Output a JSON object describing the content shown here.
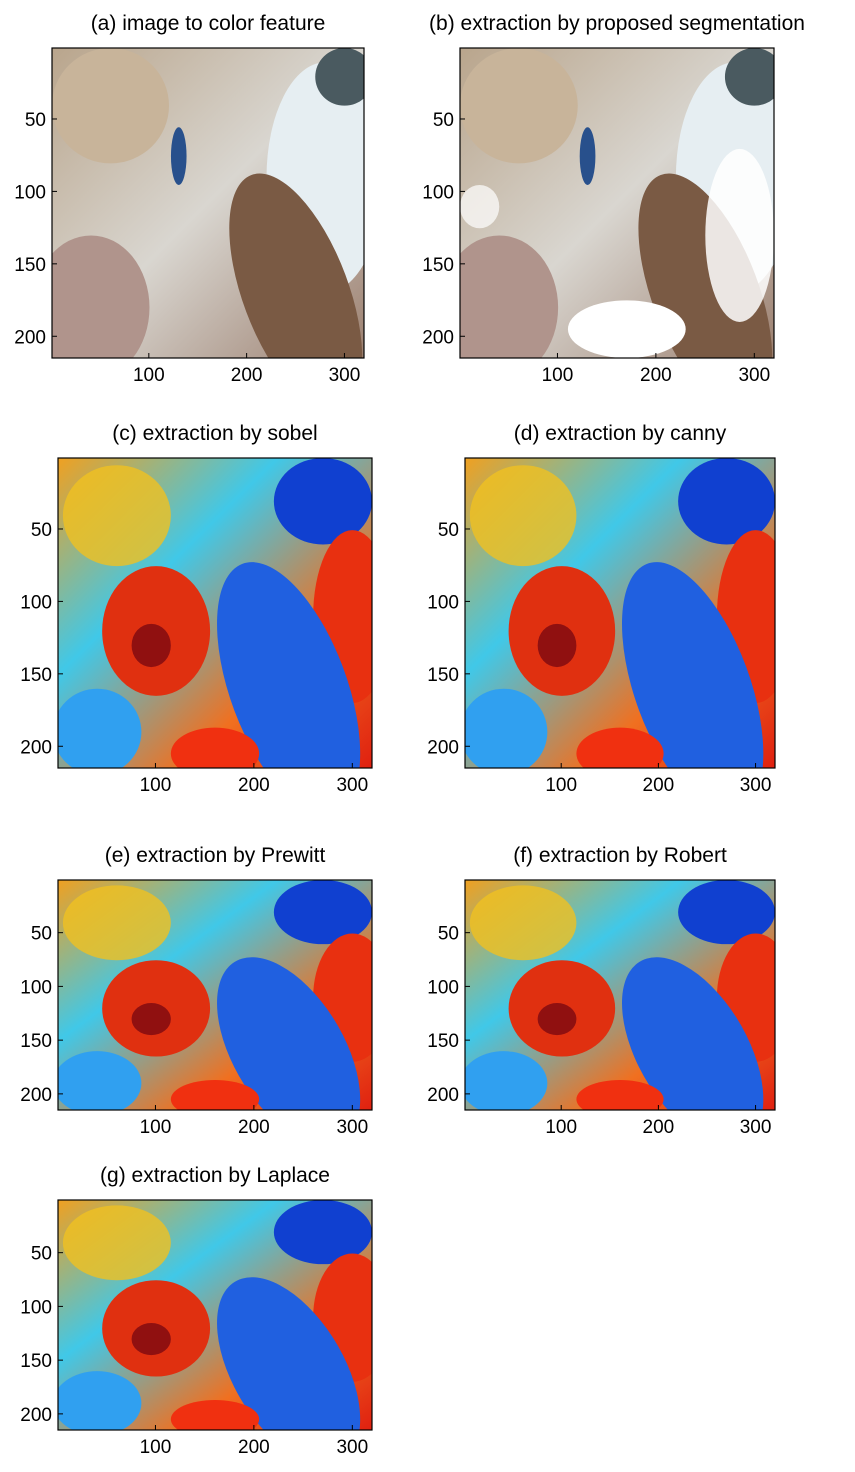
{
  "chart_data": [
    {
      "type": "image",
      "colormap": "rgb",
      "title": "(a) image to color feature",
      "xlim": [
        1,
        320
      ],
      "ylim": [
        1,
        215
      ],
      "y_reversed": true,
      "xticks": [
        100,
        200,
        300
      ],
      "yticks": [
        50,
        100,
        150,
        200
      ]
    },
    {
      "type": "image",
      "colormap": "rgb-segmented",
      "title": "(b) extraction by proposed segmentation",
      "xlim": [
        1,
        320
      ],
      "ylim": [
        1,
        215
      ],
      "y_reversed": true,
      "xticks": [
        100,
        200,
        300
      ],
      "yticks": [
        50,
        100,
        150,
        200
      ]
    },
    {
      "type": "image",
      "colormap": "jet",
      "title": "(c) extraction by sobel",
      "xlim": [
        1,
        320
      ],
      "ylim": [
        1,
        215
      ],
      "y_reversed": true,
      "xticks": [
        100,
        200,
        300
      ],
      "yticks": [
        50,
        100,
        150,
        200
      ]
    },
    {
      "type": "image",
      "colormap": "jet",
      "title": "(d) extraction by canny",
      "xlim": [
        1,
        320
      ],
      "ylim": [
        1,
        215
      ],
      "y_reversed": true,
      "xticks": [
        100,
        200,
        300
      ],
      "yticks": [
        50,
        100,
        150,
        200
      ]
    },
    {
      "type": "image",
      "colormap": "jet",
      "title": "(e) extraction by Prewitt",
      "xlim": [
        1,
        320
      ],
      "ylim": [
        1,
        215
      ],
      "y_reversed": true,
      "xticks": [
        100,
        200,
        300
      ],
      "yticks": [
        50,
        100,
        150,
        200
      ]
    },
    {
      "type": "image",
      "colormap": "jet",
      "title": "(f) extraction by  Robert",
      "xlim": [
        1,
        320
      ],
      "ylim": [
        1,
        215
      ],
      "y_reversed": true,
      "xticks": [
        100,
        200,
        300
      ],
      "yticks": [
        50,
        100,
        150,
        200
      ]
    },
    {
      "type": "image",
      "colormap": "jet",
      "title": "(g) extraction by Laplace",
      "xlim": [
        1,
        320
      ],
      "ylim": [
        1,
        215
      ],
      "y_reversed": true,
      "xticks": [
        100,
        200,
        300
      ],
      "yticks": [
        50,
        100,
        150,
        200
      ]
    }
  ]
}
